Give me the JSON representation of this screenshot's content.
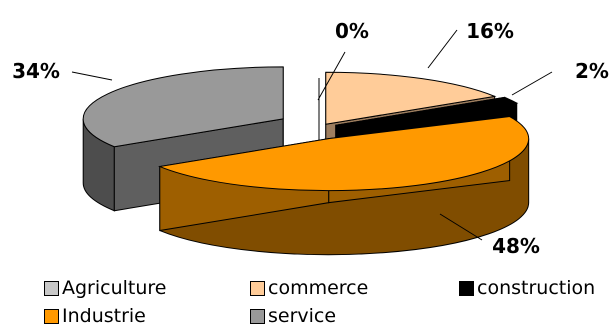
{
  "chart_data": {
    "type": "pie",
    "style": "3d-exploded",
    "categories": [
      "Agriculture",
      "commerce",
      "construction",
      "Industrie",
      "service"
    ],
    "values": [
      0,
      16,
      2,
      48,
      34
    ],
    "data_labels": [
      "0%",
      "16%",
      "2%",
      "48%",
      "34%"
    ],
    "colors": [
      "#C8C8C8",
      "#FFCC99",
      "#000000",
      "#FF9900",
      "#999999"
    ],
    "legend_position": "bottom"
  }
}
